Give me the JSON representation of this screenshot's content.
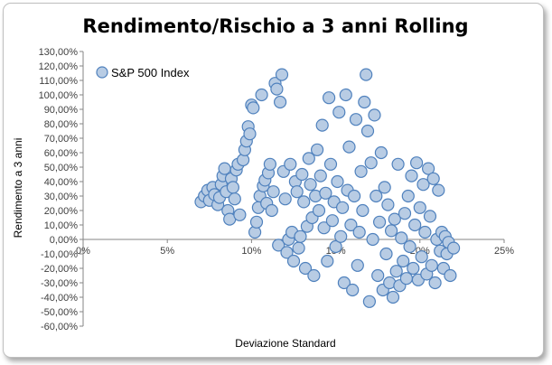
{
  "chart_data": {
    "type": "scatter",
    "title": "Rendimento/Rischio a 3 anni Rolling",
    "xlabel": "Deviazione Standard",
    "ylabel": "Rendimento a 3 anni",
    "xlim": [
      0,
      0.25
    ],
    "ylim": [
      -0.6,
      1.3
    ],
    "x_ticks": [
      0,
      0.05,
      0.1,
      0.15,
      0.2,
      0.25
    ],
    "x_tick_labels": [
      "0%",
      "5%",
      "10%",
      "15%",
      "20%",
      "25%"
    ],
    "y_ticks": [
      1.3,
      1.2,
      1.1,
      1.0,
      0.9,
      0.8,
      0.7,
      0.6,
      0.5,
      0.4,
      0.3,
      0.2,
      0.1,
      0.0,
      -0.1,
      -0.2,
      -0.3,
      -0.4,
      -0.5,
      -0.6
    ],
    "y_tick_labels": [
      "130,00%",
      "120,00%",
      "110,00%",
      "100,00%",
      "90,00%",
      "80,00%",
      "70,00%",
      "60,00%",
      "50,00%",
      "40,00%",
      "30,00%",
      "20,00%",
      "10,00%",
      "0,00%",
      "-10,00%",
      "-20,00%",
      "-30,00%",
      "-40,00%",
      "-50,00%",
      "-60,00%"
    ],
    "grid": false,
    "legend_position": "top-left",
    "marker_fill": "#b8cce4",
    "marker_edge": "#4f81bd",
    "series": [
      {
        "name": "S&P 500 Index",
        "points": [
          [
            0.07,
            0.26
          ],
          [
            0.072,
            0.3
          ],
          [
            0.074,
            0.34
          ],
          [
            0.075,
            0.27
          ],
          [
            0.077,
            0.36
          ],
          [
            0.078,
            0.31
          ],
          [
            0.08,
            0.24
          ],
          [
            0.081,
            0.29
          ],
          [
            0.082,
            0.38
          ],
          [
            0.083,
            0.44
          ],
          [
            0.084,
            0.49
          ],
          [
            0.085,
            0.33
          ],
          [
            0.086,
            0.2
          ],
          [
            0.087,
            0.14
          ],
          [
            0.088,
            0.42
          ],
          [
            0.089,
            0.36
          ],
          [
            0.09,
            0.28
          ],
          [
            0.091,
            0.48
          ],
          [
            0.092,
            0.52
          ],
          [
            0.093,
            0.17
          ],
          [
            0.095,
            0.55
          ],
          [
            0.096,
            0.62
          ],
          [
            0.097,
            0.68
          ],
          [
            0.098,
            0.78
          ],
          [
            0.099,
            0.73
          ],
          [
            0.1,
            0.93
          ],
          [
            0.101,
            0.91
          ],
          [
            0.102,
            0.05
          ],
          [
            0.103,
            0.12
          ],
          [
            0.104,
            0.22
          ],
          [
            0.105,
            0.3
          ],
          [
            0.106,
            1.0
          ],
          [
            0.107,
            0.37
          ],
          [
            0.108,
            0.41
          ],
          [
            0.109,
            0.25
          ],
          [
            0.11,
            0.46
          ],
          [
            0.111,
            0.52
          ],
          [
            0.112,
            0.2
          ],
          [
            0.113,
            0.33
          ],
          [
            0.114,
            1.08
          ],
          [
            0.115,
            1.04
          ],
          [
            0.116,
            -0.04
          ],
          [
            0.117,
            0.95
          ],
          [
            0.118,
            1.14
          ],
          [
            0.119,
            0.47
          ],
          [
            0.12,
            0.28
          ],
          [
            0.121,
            -0.09
          ],
          [
            0.122,
            0.0
          ],
          [
            0.123,
            0.52
          ],
          [
            0.124,
            0.05
          ],
          [
            0.125,
            -0.15
          ],
          [
            0.126,
            0.4
          ],
          [
            0.127,
            0.33
          ],
          [
            0.128,
            -0.06
          ],
          [
            0.129,
            0.02
          ],
          [
            0.13,
            0.45
          ],
          [
            0.131,
            0.26
          ],
          [
            0.132,
            -0.2
          ],
          [
            0.133,
            0.09
          ],
          [
            0.134,
            0.56
          ],
          [
            0.135,
            0.38
          ],
          [
            0.136,
            0.15
          ],
          [
            0.137,
            -0.25
          ],
          [
            0.138,
            0.3
          ],
          [
            0.139,
            0.62
          ],
          [
            0.14,
            0.2
          ],
          [
            0.141,
            0.44
          ],
          [
            0.142,
            0.79
          ],
          [
            0.143,
            0.08
          ],
          [
            0.144,
            0.32
          ],
          [
            0.145,
            -0.15
          ],
          [
            0.146,
            0.98
          ],
          [
            0.147,
            0.52
          ],
          [
            0.148,
            0.13
          ],
          [
            0.149,
            0.26
          ],
          [
            0.15,
            -0.05
          ],
          [
            0.151,
            0.4
          ],
          [
            0.152,
            0.88
          ],
          [
            0.153,
            0.02
          ],
          [
            0.154,
            0.22
          ],
          [
            0.155,
            -0.3
          ],
          [
            0.156,
            1.0
          ],
          [
            0.157,
            0.34
          ],
          [
            0.158,
            0.64
          ],
          [
            0.159,
            0.1
          ],
          [
            0.16,
            -0.35
          ],
          [
            0.161,
            0.3
          ],
          [
            0.162,
            0.83
          ],
          [
            0.163,
            -0.18
          ],
          [
            0.164,
            0.05
          ],
          [
            0.165,
            0.47
          ],
          [
            0.166,
            0.2
          ],
          [
            0.167,
            0.95
          ],
          [
            0.168,
            1.14
          ],
          [
            0.169,
            0.75
          ],
          [
            0.17,
            -0.43
          ],
          [
            0.171,
            0.53
          ],
          [
            0.172,
            0.0
          ],
          [
            0.173,
            0.86
          ],
          [
            0.174,
            0.3
          ],
          [
            0.175,
            -0.25
          ],
          [
            0.176,
            0.12
          ],
          [
            0.177,
            0.6
          ],
          [
            0.178,
            -0.35
          ],
          [
            0.179,
            0.36
          ],
          [
            0.18,
            -0.1
          ],
          [
            0.181,
            0.24
          ],
          [
            0.182,
            -0.3
          ],
          [
            0.183,
            0.06
          ],
          [
            0.184,
            -0.4
          ],
          [
            0.185,
            0.14
          ],
          [
            0.186,
            -0.22
          ],
          [
            0.187,
            0.52
          ],
          [
            0.188,
            -0.32
          ],
          [
            0.189,
            0.01
          ],
          [
            0.19,
            -0.15
          ],
          [
            0.191,
            0.18
          ],
          [
            0.192,
            -0.27
          ],
          [
            0.193,
            0.3
          ],
          [
            0.194,
            -0.05
          ],
          [
            0.195,
            0.44
          ],
          [
            0.196,
            -0.2
          ],
          [
            0.197,
            0.1
          ],
          [
            0.198,
            0.53
          ],
          [
            0.199,
            -0.28
          ],
          [
            0.2,
            0.22
          ],
          [
            0.201,
            -0.12
          ],
          [
            0.202,
            0.38
          ],
          [
            0.203,
            0.05
          ],
          [
            0.204,
            -0.24
          ],
          [
            0.205,
            0.49
          ],
          [
            0.206,
            0.16
          ],
          [
            0.207,
            -0.18
          ],
          [
            0.208,
            0.42
          ],
          [
            0.209,
            -0.3
          ],
          [
            0.21,
            0.0
          ],
          [
            0.211,
            0.34
          ],
          [
            0.212,
            -0.08
          ],
          [
            0.213,
            0.05
          ],
          [
            0.214,
            -0.2
          ],
          [
            0.215,
            0.02
          ],
          [
            0.216,
            -0.1
          ],
          [
            0.217,
            -0.02
          ],
          [
            0.218,
            -0.25
          ],
          [
            0.22,
            -0.06
          ]
        ]
      }
    ]
  }
}
